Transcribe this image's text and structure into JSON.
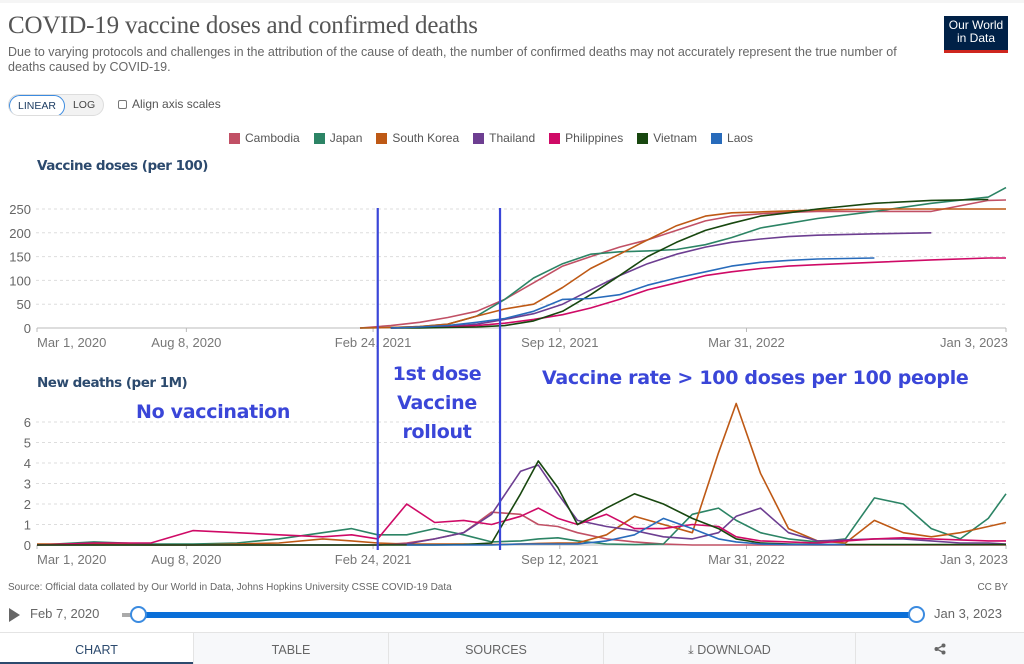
{
  "header": {
    "title": "COVID-19 vaccine doses and confirmed deaths",
    "subtitle": "Due to varying protocols and challenges in the attribution of the cause of death, the number of confirmed deaths may not accurately represent the true number of deaths caused by COVID-19.",
    "logo_line1": "Our World",
    "logo_line2": "in Data"
  },
  "controls": {
    "linear_label": "LINEAR",
    "log_label": "LOG",
    "align_label": "Align axis scales",
    "align_checked": false
  },
  "legend": [
    {
      "name": "Cambodia",
      "color": "#c15065"
    },
    {
      "name": "Japan",
      "color": "#2c8465"
    },
    {
      "name": "South Korea",
      "color": "#be5915"
    },
    {
      "name": "Thailand",
      "color": "#6d3e91"
    },
    {
      "name": "Philippines",
      "color": "#cf0a66"
    },
    {
      "name": "Vietnam",
      "color": "#18470f"
    },
    {
      "name": "Laos",
      "color": "#286bbb"
    }
  ],
  "annotations": {
    "no_vaccination": "No vaccination",
    "rollout_line1": "1st dose",
    "rollout_line2": "Vaccine",
    "rollout_line3": "rollout",
    "high_rate": "Vaccine rate > 100 doses per 100 people",
    "marker_color": "#3a46d8"
  },
  "chart_data": [
    {
      "type": "line",
      "title": "Vaccine doses (per 100)",
      "xlabel": "",
      "ylabel": "Vaccine doses (per 100)",
      "x_ticks": [
        "Mar 1, 2020",
        "Aug 8, 2020",
        "Feb 24, 2021",
        "Sep 12, 2021",
        "Mar 31, 2022",
        "Jan 3, 2023"
      ],
      "y_ticks": [
        0,
        50,
        100,
        150,
        200,
        250
      ],
      "ylim": [
        0,
        250
      ],
      "xlim": [
        "2020-03-01",
        "2023-01-03"
      ],
      "grid": true,
      "x": [
        "2021-02-10",
        "2021-03-15",
        "2021-04-15",
        "2021-05-15",
        "2021-06-15",
        "2021-07-15",
        "2021-08-15",
        "2021-09-15",
        "2021-10-15",
        "2021-11-15",
        "2021-12-15",
        "2022-01-15",
        "2022-02-15",
        "2022-03-15",
        "2022-04-15",
        "2022-05-15",
        "2022-06-15",
        "2022-08-15",
        "2022-10-15",
        "2022-12-15",
        "2023-01-03"
      ],
      "series": [
        {
          "name": "Cambodia",
          "values": [
            0,
            5,
            12,
            22,
            35,
            60,
            95,
            130,
            150,
            170,
            185,
            205,
            225,
            235,
            240,
            243,
            245,
            245,
            245,
            268,
            269
          ]
        },
        {
          "name": "Japan",
          "values": [
            0,
            1,
            3,
            8,
            25,
            60,
            105,
            135,
            155,
            160,
            162,
            165,
            175,
            190,
            210,
            220,
            230,
            245,
            262,
            275,
            295
          ]
        },
        {
          "name": "South Korea",
          "values": [
            0,
            1,
            3,
            8,
            25,
            40,
            50,
            85,
            125,
            155,
            185,
            215,
            235,
            242,
            244,
            246,
            248,
            250,
            250,
            250,
            250
          ]
        },
        {
          "name": "Thailand",
          "values": [
            null,
            0,
            1,
            3,
            8,
            18,
            30,
            50,
            80,
            110,
            135,
            155,
            170,
            180,
            187,
            192,
            195,
            198,
            200,
            null,
            null
          ]
        },
        {
          "name": "Philippines",
          "values": [
            null,
            0,
            1,
            2,
            5,
            10,
            18,
            28,
            42,
            60,
            80,
            95,
            110,
            118,
            125,
            130,
            133,
            138,
            143,
            147,
            147
          ]
        },
        {
          "name": "Vietnam",
          "values": [
            null,
            0,
            0,
            1,
            2,
            5,
            15,
            35,
            70,
            110,
            150,
            180,
            205,
            220,
            235,
            242,
            250,
            262,
            268,
            270,
            null
          ]
        },
        {
          "name": "Laos",
          "values": [
            null,
            0,
            2,
            5,
            12,
            20,
            35,
            60,
            62,
            70,
            90,
            105,
            118,
            130,
            138,
            142,
            145,
            147,
            null,
            null,
            null
          ]
        }
      ]
    },
    {
      "type": "line",
      "title": "New deaths (per 1M)",
      "xlabel": "",
      "ylabel": "New deaths (per 1M)",
      "x_ticks": [
        "Mar 1, 2020",
        "Aug 8, 2020",
        "Feb 24, 2021",
        "Sep 12, 2021",
        "Mar 31, 2022",
        "Jan 3, 2023"
      ],
      "y_ticks": [
        0,
        1,
        2,
        3,
        4,
        5,
        6
      ],
      "ylim": [
        0,
        6.5
      ],
      "xlim": [
        "2020-03-01",
        "2023-01-03"
      ],
      "grid": true,
      "x": [
        "2020-03-01",
        "2020-05-01",
        "2020-07-01",
        "2020-08-15",
        "2020-10-01",
        "2020-11-15",
        "2021-01-01",
        "2021-02-01",
        "2021-03-01",
        "2021-04-01",
        "2021-05-01",
        "2021-06-01",
        "2021-07-01",
        "2021-08-01",
        "2021-08-20",
        "2021-09-10",
        "2021-10-01",
        "2021-11-01",
        "2021-12-01",
        "2022-01-01",
        "2022-02-01",
        "2022-03-01",
        "2022-03-20",
        "2022-04-15",
        "2022-05-15",
        "2022-06-15",
        "2022-07-15",
        "2022-08-15",
        "2022-09-15",
        "2022-10-15",
        "2022-11-15",
        "2022-12-15",
        "2023-01-03"
      ],
      "series": [
        {
          "name": "Cambodia",
          "values": [
            0,
            0,
            0,
            0,
            0,
            0,
            0,
            0,
            0,
            0.1,
            0.3,
            0.6,
            1.6,
            1.5,
            1.0,
            0.9,
            0.6,
            0.3,
            0.15,
            0.05,
            0,
            0,
            0,
            0,
            0,
            0,
            0,
            0,
            0,
            0,
            0,
            0,
            0
          ]
        },
        {
          "name": "Japan",
          "values": [
            0,
            0.15,
            0.05,
            0.05,
            0.1,
            0.3,
            0.6,
            0.8,
            0.5,
            0.5,
            0.8,
            0.5,
            0.15,
            0.2,
            0.3,
            0.35,
            0.2,
            0.05,
            0.02,
            0.05,
            1.5,
            1.8,
            1.2,
            0.6,
            0.3,
            0.15,
            0.3,
            2.3,
            2.0,
            0.8,
            0.3,
            1.3,
            2.5
          ]
        },
        {
          "name": "South Korea",
          "values": [
            0.05,
            0.05,
            0,
            0,
            0.05,
            0.1,
            0.3,
            0.2,
            0.1,
            0.05,
            0.05,
            0.05,
            0.02,
            0.05,
            0.08,
            0.1,
            0.1,
            0.5,
            1.4,
            1.0,
            0.6,
            4.5,
            6.9,
            3.5,
            0.8,
            0.2,
            0.1,
            1.2,
            0.6,
            0.4,
            0.6,
            0.9,
            1.1
          ]
        },
        {
          "name": "Thailand",
          "values": [
            0,
            0,
            0,
            0,
            0,
            0,
            0,
            0,
            0,
            0.05,
            0.3,
            0.6,
            1.5,
            3.6,
            3.9,
            2.5,
            1.2,
            0.9,
            0.7,
            0.4,
            0.3,
            0.6,
            1.4,
            1.8,
            0.6,
            0.2,
            0.25,
            0.3,
            0.3,
            0.2,
            0.1,
            0.1,
            0.05
          ]
        },
        {
          "name": "Philippines",
          "values": [
            0,
            0.1,
            0.1,
            0.7,
            0.6,
            0.5,
            0.4,
            0.5,
            0.3,
            2.0,
            1.1,
            1.2,
            1.0,
            1.4,
            1.8,
            1.3,
            1.0,
            1.5,
            0.8,
            0.8,
            1.0,
            0.9,
            0.4,
            0.2,
            0.15,
            0.1,
            0.2,
            0.3,
            0.35,
            0.3,
            0.25,
            0.2,
            0.2
          ]
        },
        {
          "name": "Vietnam",
          "values": [
            0,
            0,
            0,
            0,
            0,
            0,
            0,
            0,
            0,
            0,
            0,
            0.02,
            0.1,
            2.5,
            4.1,
            2.8,
            1.0,
            1.8,
            2.5,
            2.0,
            1.3,
            0.8,
            0.3,
            0.1,
            0.05,
            0.02,
            0.02,
            0.02,
            0.02,
            0.02,
            0.02,
            0.02,
            0.02
          ]
        },
        {
          "name": "Laos",
          "values": [
            null,
            null,
            null,
            null,
            null,
            null,
            null,
            null,
            null,
            0,
            0,
            0,
            0,
            0.05,
            0.05,
            0.05,
            0.05,
            0.2,
            0.5,
            1.3,
            0.8,
            0.3,
            0.15,
            0.05,
            0.02,
            0.02,
            0.02,
            null,
            null,
            null,
            null,
            null,
            null
          ]
        }
      ]
    }
  ],
  "markers": {
    "rollout_start": "2021-03-01",
    "high_rate_start": "2021-07-10"
  },
  "footer": {
    "source": "Source: Official data collated by Our World in Data, Johns Hopkins University CSSE COVID-19 Data",
    "license": "CC BY",
    "timeline_start": "Feb 7, 2020",
    "timeline_end": "Jan 3, 2023"
  },
  "tabs": [
    {
      "label": "CHART",
      "active": true
    },
    {
      "label": "TABLE",
      "active": false
    },
    {
      "label": "SOURCES",
      "active": false
    },
    {
      "label": "DOWNLOAD",
      "active": false,
      "icon": "download-icon"
    },
    {
      "label": "",
      "active": false,
      "icon": "share-icon"
    }
  ]
}
